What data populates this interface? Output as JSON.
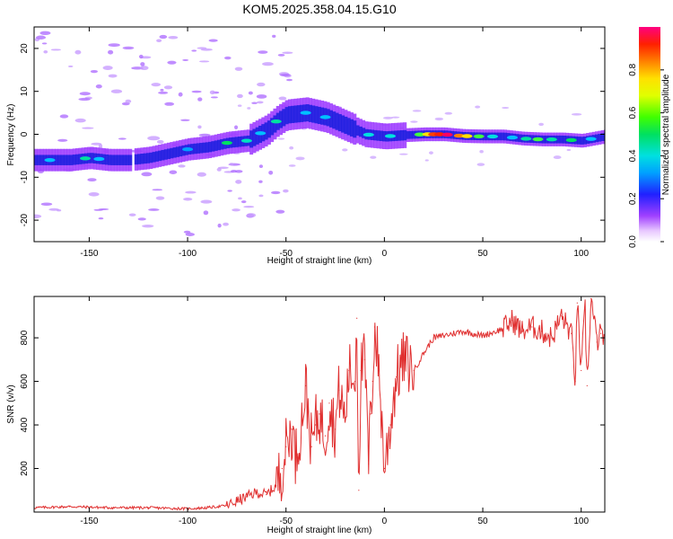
{
  "title": "KOM5.2025.358.04.15.G10",
  "chart_data": [
    {
      "type": "heatmap",
      "xlabel": "Height of straight line (km)",
      "ylabel": "Frequency (Hz)",
      "xlim": [
        -178,
        112
      ],
      "ylim": [
        -25,
        25
      ],
      "xticks": [
        -150,
        -100,
        -50,
        0,
        50,
        100
      ],
      "yticks": [
        -20,
        -10,
        0,
        10,
        20
      ],
      "xtick_labels": [
        "-150",
        "-100",
        "-50",
        "0",
        "50",
        "100"
      ],
      "ytick_labels": [
        "-20",
        "-10",
        "0",
        "10",
        "20"
      ],
      "ridge": {
        "x": [
          -178,
          -160,
          -150,
          -140,
          -130,
          -120,
          -110,
          -100,
          -90,
          -80,
          -70,
          -60,
          -55,
          -50,
          -40,
          -30,
          -20,
          -10,
          0,
          10,
          20,
          30,
          40,
          50,
          60,
          70,
          80,
          90,
          100,
          112
        ],
        "freq": [
          -6,
          -6,
          -5.5,
          -6,
          -6,
          -5.5,
          -4.5,
          -3.5,
          -3,
          -2,
          -1.5,
          1,
          3,
          4.5,
          5,
          4,
          2,
          0,
          -0.5,
          -0.2,
          0,
          0,
          -0.4,
          -0.5,
          -0.5,
          -1,
          -1.2,
          -1.2,
          -1.5,
          -0.5
        ]
      }
    },
    {
      "type": "line",
      "xlabel": "Height of straight line (km)",
      "ylabel": "SNR (v/v)",
      "xlim": [
        -178,
        112
      ],
      "ylim": [
        0,
        990
      ],
      "xticks": [
        -150,
        -100,
        -50,
        0,
        50,
        100
      ],
      "yticks": [
        200,
        400,
        600,
        800
      ],
      "xtick_labels": [
        "-150",
        "-100",
        "-50",
        "0",
        "50",
        "100"
      ],
      "ytick_labels": [
        "200",
        "400",
        "600",
        "800"
      ],
      "color": "#e03030",
      "series": [
        {
          "name": "SNR",
          "x": [
            -178,
            -160,
            -140,
            -120,
            -100,
            -90,
            -80,
            -75,
            -70,
            -65,
            -60,
            -55,
            -52,
            -50,
            -47,
            -45,
            -42,
            -40,
            -37,
            -35,
            -33,
            -30,
            -28,
            -25,
            -23,
            -20,
            -18,
            -15,
            -14,
            -13,
            -12,
            -10,
            -8,
            -7,
            -6,
            -5,
            -3,
            0,
            3,
            6,
            10,
            15,
            20,
            25,
            30,
            40,
            50,
            60,
            65,
            70,
            75,
            80,
            85,
            90,
            95,
            97,
            98,
            100,
            102,
            103,
            105,
            108,
            110,
            112
          ],
          "y": [
            20,
            25,
            20,
            20,
            15,
            20,
            30,
            50,
            70,
            90,
            80,
            120,
            200,
            300,
            380,
            250,
            420,
            580,
            300,
            400,
            450,
            350,
            500,
            380,
            560,
            420,
            650,
            600,
            890,
            100,
            650,
            700,
            220,
            450,
            600,
            850,
            680,
            200,
            400,
            620,
            700,
            650,
            730,
            800,
            810,
            830,
            810,
            840,
            880,
            830,
            850,
            830,
            800,
            900,
            820,
            600,
            960,
            650,
            930,
            580,
            980,
            780,
            820,
            800
          ]
        }
      ]
    }
  ],
  "colorbar": {
    "label": "Normalized spectral amplitude",
    "ticks": [
      0.0,
      0.2,
      0.4,
      0.6,
      0.8
    ],
    "tick_labels": [
      "0.0",
      "0.2",
      "0.4",
      "0.6",
      "0.8"
    ],
    "range": [
      0,
      1
    ]
  }
}
